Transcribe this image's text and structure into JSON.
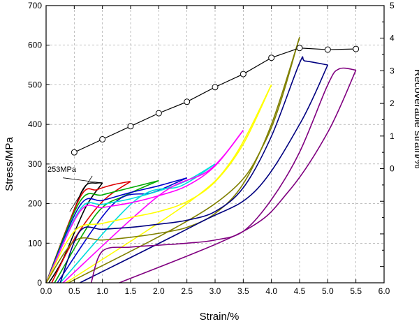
{
  "chart_data": {
    "type": "line",
    "xlabel": "Strain/%",
    "ylabel": "Stress/MPa",
    "y2label": "Recoverable strain/%",
    "xlim": [
      0,
      6
    ],
    "ylim": [
      0,
      700
    ],
    "y2lim": [
      -3.5,
      5
    ],
    "xticks": [
      "0.0",
      "0.5",
      "1.0",
      "1.5",
      "2.0",
      "2.5",
      "3.0",
      "3.5",
      "4.0",
      "4.5",
      "5.0",
      "5.5",
      "6.0"
    ],
    "yticks": [
      "0",
      "100",
      "200",
      "300",
      "400",
      "500",
      "600",
      "700"
    ],
    "y2ticks": [
      "0",
      "1",
      "2",
      "3",
      "4",
      "5"
    ],
    "grid": "dashed",
    "legend": "none",
    "annotation": {
      "text": "253MPa",
      "x": 0.85,
      "y": 253
    },
    "recoverable_strain": {
      "marker": "open-circle",
      "color": "#000000",
      "x": [
        0.5,
        1.0,
        1.5,
        2.0,
        2.5,
        3.0,
        3.5,
        4.0,
        4.5,
        5.0,
        5.5
      ],
      "y": [
        0.5,
        0.9,
        1.3,
        1.7,
        2.05,
        2.5,
        2.9,
        3.4,
        3.7,
        3.65,
        3.67
      ]
    },
    "series": [
      {
        "color": "#000000",
        "loading": [
          [
            0,
            0
          ],
          [
            0.5,
            185
          ],
          [
            0.7,
            245
          ],
          [
            0.9,
            252
          ],
          [
            1.0,
            252
          ]
        ],
        "unloading": [
          [
            1.0,
            252
          ],
          [
            0.7,
            190
          ],
          [
            0.3,
            60
          ],
          [
            0.05,
            0
          ]
        ]
      },
      {
        "color": "#dd0000",
        "loading": [
          [
            0,
            0
          ],
          [
            0.6,
            215
          ],
          [
            0.9,
            235
          ],
          [
            1.2,
            248
          ],
          [
            1.5,
            256
          ]
        ],
        "unloading": [
          [
            1.5,
            256
          ],
          [
            1.0,
            205
          ],
          [
            0.5,
            110
          ],
          [
            0.1,
            0
          ]
        ]
      },
      {
        "color": "#00aa00",
        "loading": [
          [
            0,
            0
          ],
          [
            0.6,
            205
          ],
          [
            1.0,
            222
          ],
          [
            1.5,
            240
          ],
          [
            2.0,
            258
          ]
        ],
        "unloading": [
          [
            2.0,
            258
          ],
          [
            1.4,
            220
          ],
          [
            0.9,
            175
          ],
          [
            0.15,
            0
          ]
        ]
      },
      {
        "color": "#0000cc",
        "loading": [
          [
            0,
            0
          ],
          [
            0.6,
            195
          ],
          [
            1.0,
            208
          ],
          [
            1.5,
            228
          ],
          [
            2.0,
            245
          ],
          [
            2.5,
            265
          ]
        ],
        "unloading": [
          [
            2.5,
            265
          ],
          [
            1.9,
            228
          ],
          [
            1.2,
            200
          ],
          [
            0.2,
            0
          ]
        ]
      },
      {
        "color": "#00dddd",
        "loading": [
          [
            0,
            0
          ],
          [
            0.6,
            185
          ],
          [
            1.0,
            198
          ],
          [
            1.5,
            212
          ],
          [
            2.0,
            232
          ],
          [
            2.5,
            258
          ],
          [
            3.0,
            300
          ]
        ],
        "unloading": [
          [
            3.0,
            300
          ],
          [
            2.4,
            245
          ],
          [
            1.6,
            210
          ],
          [
            0.25,
            0
          ]
        ]
      },
      {
        "color": "#ff00ff",
        "loading": [
          [
            0,
            0
          ],
          [
            0.6,
            180
          ],
          [
            1.0,
            190
          ],
          [
            1.5,
            202
          ],
          [
            2.0,
            220
          ],
          [
            2.5,
            245
          ],
          [
            3.0,
            295
          ],
          [
            3.5,
            385
          ]
        ],
        "unloading": [
          [
            3.5,
            385
          ],
          [
            2.9,
            285
          ],
          [
            2.0,
            220
          ],
          [
            0.3,
            0
          ]
        ]
      },
      {
        "color": "#ffff00",
        "loading": [
          [
            0,
            0
          ],
          [
            0.5,
            130
          ],
          [
            1.0,
            150
          ],
          [
            1.5,
            165
          ],
          [
            2.0,
            180
          ],
          [
            2.5,
            205
          ],
          [
            3.0,
            255
          ],
          [
            3.5,
            350
          ],
          [
            4.0,
            500
          ]
        ],
        "unloading": [
          [
            4.0,
            500
          ],
          [
            3.3,
            310
          ],
          [
            2.5,
            200
          ],
          [
            0.35,
            0
          ]
        ]
      },
      {
        "color": "#808000",
        "loading": [
          [
            0,
            0
          ],
          [
            0.5,
            105
          ],
          [
            1.0,
            108
          ],
          [
            1.5,
            115
          ],
          [
            2.0,
            125
          ],
          [
            2.5,
            140
          ],
          [
            3.0,
            175
          ],
          [
            3.5,
            250
          ],
          [
            4.0,
            400
          ],
          [
            4.5,
            620
          ]
        ],
        "unloading": [
          [
            4.5,
            620
          ],
          [
            3.9,
            360
          ],
          [
            3.0,
            200
          ],
          [
            0.4,
            0
          ]
        ]
      },
      {
        "color": "#000080",
        "loading": [
          [
            0.25,
            0
          ],
          [
            0.6,
            130
          ],
          [
            1.0,
            135
          ],
          [
            1.5,
            140
          ],
          [
            2.0,
            148
          ],
          [
            2.5,
            158
          ],
          [
            3.0,
            180
          ],
          [
            3.5,
            240
          ],
          [
            4.0,
            370
          ],
          [
            4.5,
            555
          ],
          [
            4.6,
            560
          ],
          [
            5.0,
            550
          ]
        ],
        "unloading": [
          [
            5.0,
            550
          ],
          [
            4.5,
            400
          ],
          [
            3.7,
            230
          ],
          [
            2.7,
            150
          ],
          [
            0.6,
            0
          ]
        ]
      },
      {
        "color": "#800080",
        "loading": [
          [
            0.8,
            0
          ],
          [
            1.0,
            80
          ],
          [
            1.5,
            90
          ],
          [
            2.0,
            95
          ],
          [
            2.5,
            100
          ],
          [
            3.0,
            108
          ],
          [
            3.5,
            130
          ],
          [
            4.0,
            210
          ],
          [
            4.5,
            330
          ],
          [
            5.0,
            500
          ],
          [
            5.2,
            540
          ],
          [
            5.5,
            537
          ]
        ],
        "unloading": [
          [
            5.5,
            537
          ],
          [
            5.0,
            380
          ],
          [
            4.3,
            230
          ],
          [
            3.5,
            130
          ],
          [
            1.3,
            0
          ]
        ]
      }
    ]
  }
}
